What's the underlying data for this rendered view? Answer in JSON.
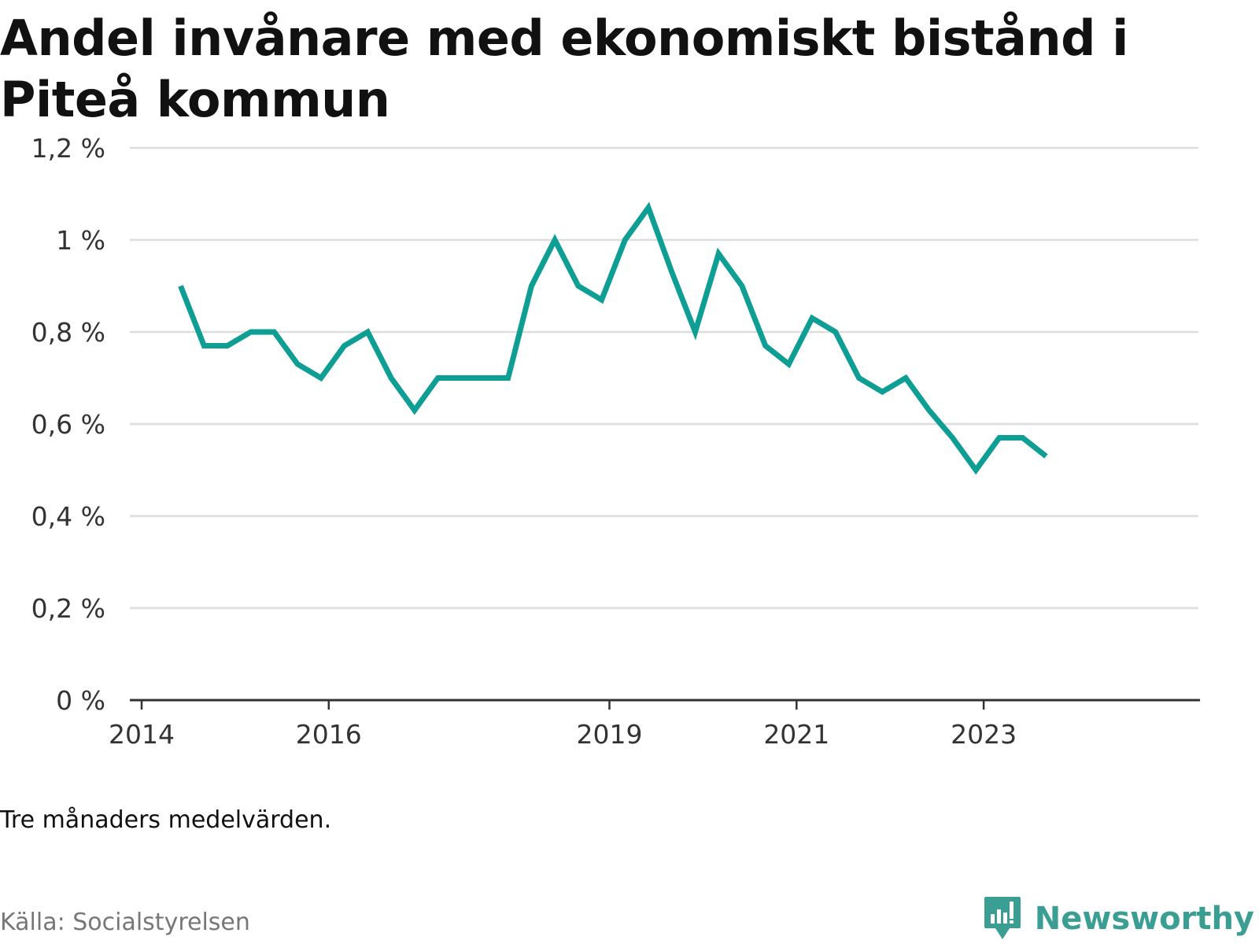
{
  "title": "Andel invånare med ekonomiskt bistånd i Piteå kommun",
  "note": "Tre månaders medelvärden.",
  "source": "Källa: Socialstyrelsen",
  "brand": "Newsworthy",
  "colors": {
    "line": "#0e9e94",
    "grid": "#dddddd",
    "axis": "#333333",
    "brand": "#3a9e93"
  },
  "icons": {
    "brand_logo": "newsworthy-logo-icon"
  },
  "chart_data": {
    "type": "line",
    "title": "Andel invånare med ekonomiskt bistånd i Piteå kommun",
    "xlabel": "",
    "ylabel": "",
    "y_unit": "%",
    "ylim": [
      0,
      1.2
    ],
    "y_ticks": [
      0,
      0.2,
      0.4,
      0.6,
      0.8,
      1.0,
      1.2
    ],
    "y_tick_labels": [
      "0 %",
      "0,2 %",
      "0,4 %",
      "0,6 %",
      "0,8 %",
      "1 %",
      "1,2 %"
    ],
    "xlim": [
      "2014-01",
      "2024-12"
    ],
    "x_ticks": [
      "2014-01",
      "2016-01",
      "2019-01",
      "2021-01",
      "2023-01"
    ],
    "x_tick_labels": [
      "2014",
      "2016",
      "2019",
      "2021",
      "2023"
    ],
    "grid": true,
    "series": [
      {
        "x": [
          "2014-06",
          "2014-09",
          "2014-12",
          "2015-03",
          "2015-06",
          "2015-09",
          "2015-12",
          "2016-03",
          "2016-06",
          "2016-09",
          "2016-12",
          "2017-03",
          "2017-06",
          "2017-09",
          "2017-12",
          "2018-03",
          "2018-06",
          "2018-09",
          "2018-12",
          "2019-03",
          "2019-06",
          "2019-09",
          "2019-12",
          "2020-03",
          "2020-06",
          "2020-09",
          "2020-12",
          "2021-03",
          "2021-06",
          "2021-09",
          "2021-12",
          "2022-03",
          "2022-06",
          "2022-09",
          "2022-12",
          "2023-03",
          "2023-06",
          "2023-09"
        ],
        "values": [
          0.9,
          0.77,
          0.77,
          0.8,
          0.8,
          0.73,
          0.7,
          0.77,
          0.8,
          0.7,
          0.63,
          0.7,
          0.7,
          0.7,
          0.7,
          0.9,
          1.0,
          0.9,
          0.87,
          1.0,
          1.07,
          0.93,
          0.8,
          0.97,
          0.9,
          0.77,
          0.73,
          0.83,
          0.8,
          0.7,
          0.67,
          0.7,
          0.63,
          0.57,
          0.5,
          0.57,
          0.57,
          0.53
        ]
      }
    ]
  }
}
